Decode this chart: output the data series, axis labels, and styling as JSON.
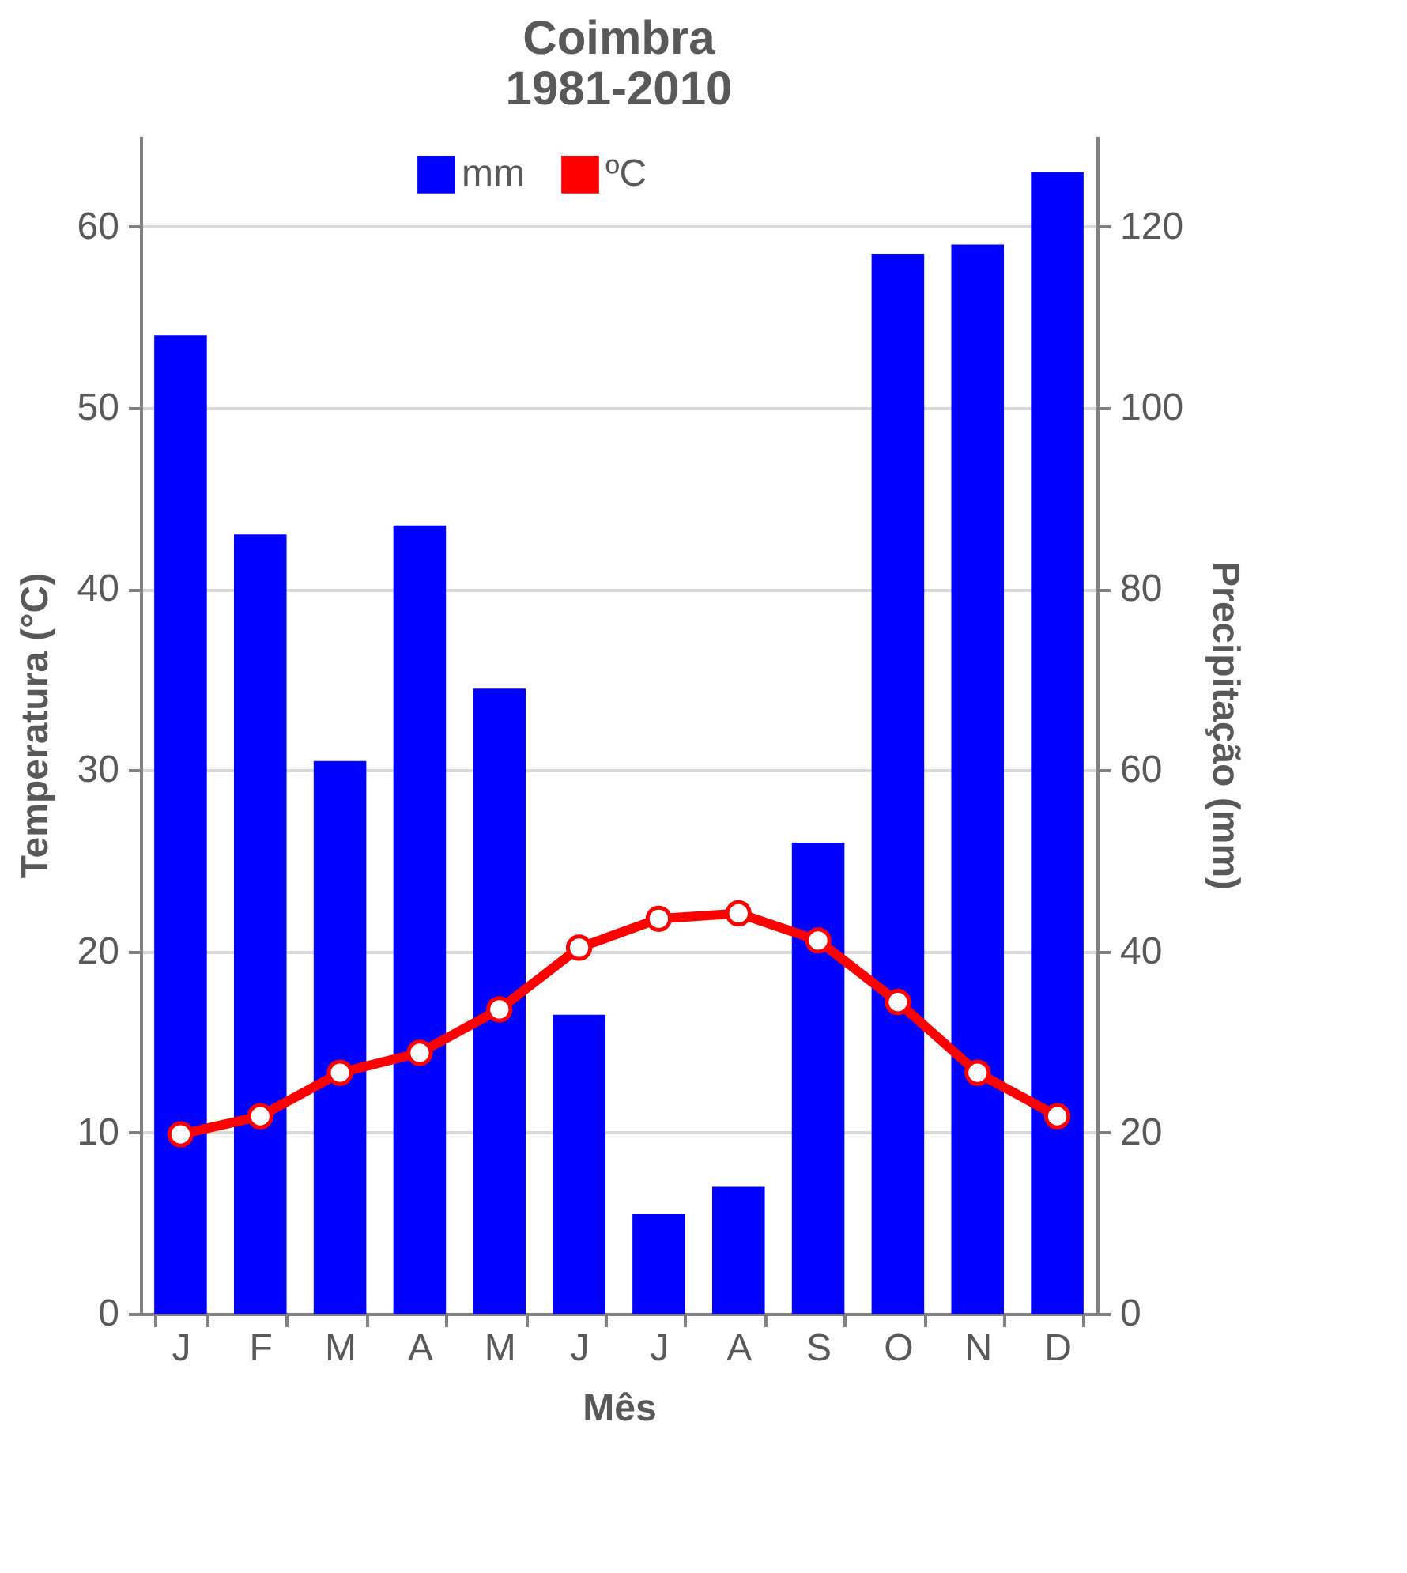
{
  "chart_data": {
    "type": "bar",
    "title": "Coimbra\n1981-2010",
    "xlabel": "Mês",
    "ylabel": "Temperatura (°C)",
    "y2label": "Precipitação (mm)",
    "categories": [
      "J",
      "F",
      "M",
      "A",
      "M",
      "J",
      "J",
      "A",
      "S",
      "O",
      "N",
      "D"
    ],
    "series": [
      {
        "name": "mm",
        "axis": "y2",
        "color": "#0000ff",
        "values": [
          108,
          86,
          61,
          87,
          69,
          33,
          11,
          14,
          52,
          117,
          118,
          126
        ]
      },
      {
        "name": "ºC",
        "type": "line",
        "color": "#ff0000",
        "values": [
          9.9,
          10.9,
          13.3,
          14.4,
          16.8,
          20.2,
          21.8,
          22.1,
          20.6,
          17.2,
          13.3,
          10.9
        ]
      }
    ],
    "ylim": [
      0,
      65
    ],
    "yticks": [
      0,
      10,
      20,
      30,
      40,
      50,
      60
    ],
    "y2lim": [
      0,
      130
    ],
    "y2ticks": [
      0,
      20,
      40,
      60,
      80,
      100,
      120
    ],
    "grid": "y",
    "legend": "top",
    "marker": "circle"
  }
}
